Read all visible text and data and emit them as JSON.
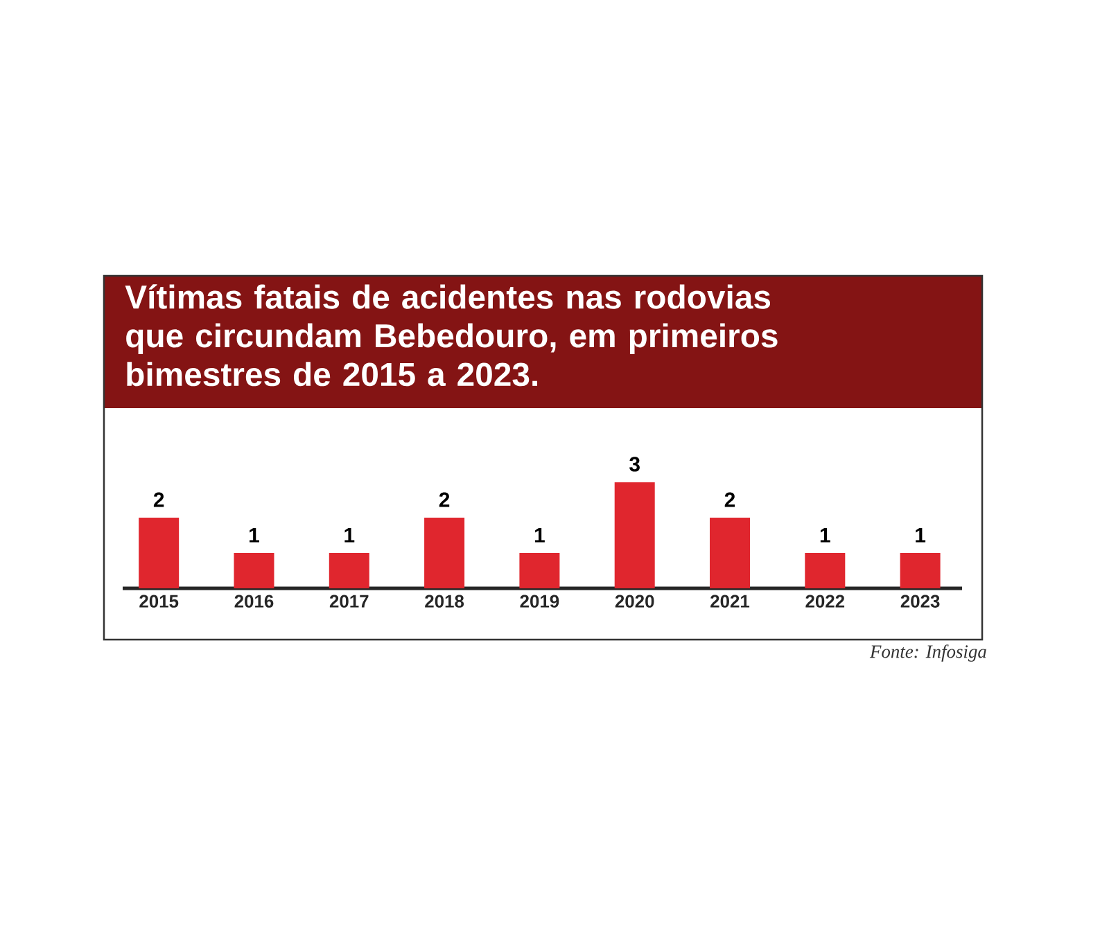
{
  "chart_data": {
    "type": "bar",
    "title": "Vítimas fatais de acidentes nas rodovias que circundam Bebedouro, em primeiros bimestres de 2015 a 2023.",
    "categories": [
      "2015",
      "2016",
      "2017",
      "2018",
      "2019",
      "2020",
      "2021",
      "2022",
      "2023"
    ],
    "values": [
      2,
      1,
      1,
      2,
      1,
      3,
      2,
      1,
      1
    ],
    "color": "#e0262e",
    "data_labels": true,
    "annotations": [
      "Fonte: Infosiga"
    ]
  }
}
